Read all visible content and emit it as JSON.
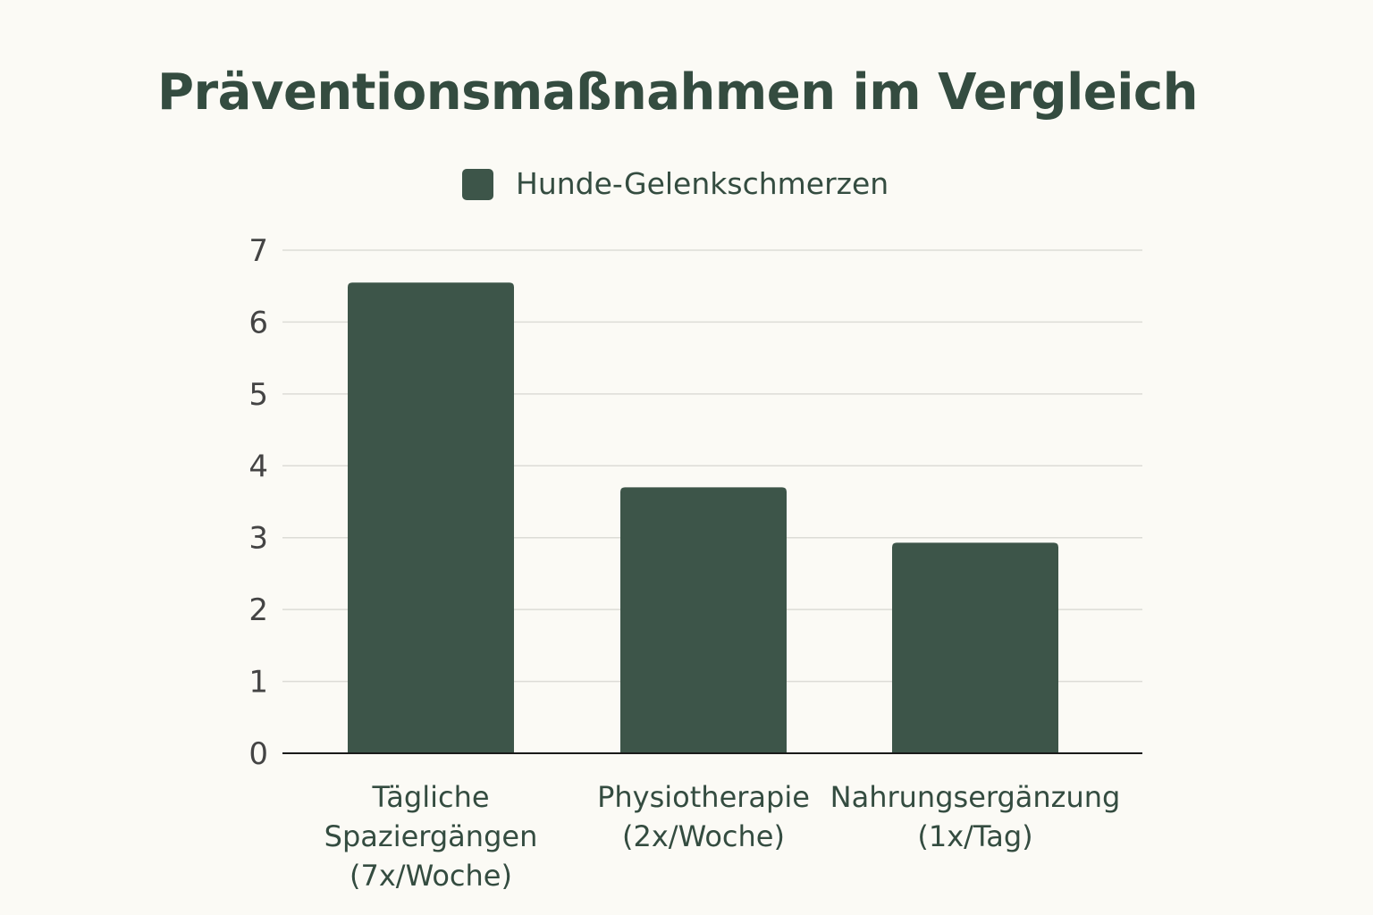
{
  "chart_data": {
    "type": "bar",
    "title": "Präventionsmaßnahmen im Vergleich",
    "xlabel": "",
    "ylabel": "",
    "categories": [
      [
        "Tägliche",
        "Spaziergängen",
        "(7x/Woche)"
      ],
      [
        "Physiotherapie",
        "(2x/Woche)"
      ],
      [
        "Nahrungsergänzung",
        "(1x/Tag)"
      ]
    ],
    "series": [
      {
        "name": "Hunde-Gelenkschmerzen",
        "color": "#3d5549",
        "values": [
          6.55,
          3.7,
          2.93
        ]
      }
    ],
    "ylim": [
      0,
      7
    ],
    "yticks": [
      "0",
      "1",
      "2",
      "3",
      "4",
      "5",
      "6",
      "7"
    ],
    "grid": true,
    "legend_position": "top-center"
  },
  "colors": {
    "background": "#fbfaf5",
    "bar": "#3d5549",
    "title": "#344c40",
    "grid": "#dcdcd6",
    "axis": "#1a1a1a"
  }
}
